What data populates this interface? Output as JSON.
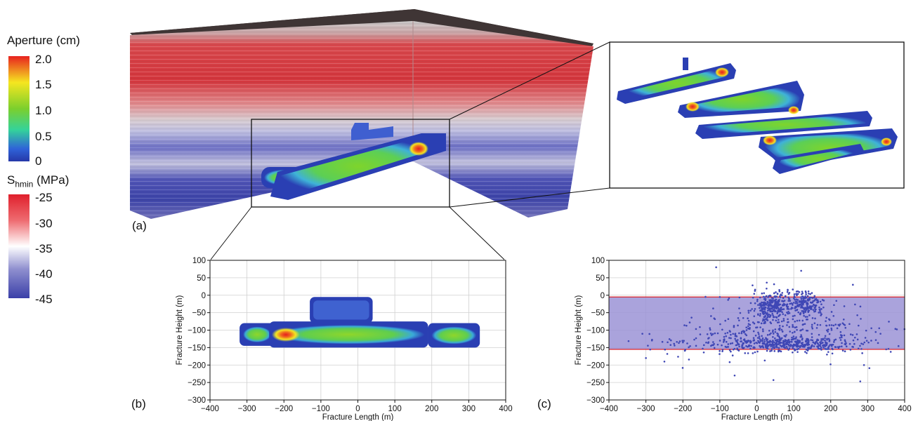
{
  "figure": {
    "colorbars": {
      "aperture": {
        "title": "Aperture (cm)",
        "ticks": [
          "2.0",
          "1.5",
          "1.0",
          "0.5",
          "0"
        ]
      },
      "stress": {
        "title_main": "S",
        "title_sub": "hmin",
        "title_unit": " (MPa)",
        "ticks": [
          "-25",
          "-30",
          "-35",
          "-40",
          "-45"
        ]
      }
    },
    "panel_labels": {
      "a": "(a)",
      "b": "(b)",
      "c": "(c)"
    },
    "colors": {
      "red_band": "#d7333b",
      "blue_band": "#3c45a6",
      "shade_fill": "#9b93d6",
      "scatter_point": "#3f47b5",
      "red_line": "#d8202a"
    }
  },
  "chart_data": [
    {
      "id": "b",
      "type": "heatmap",
      "xlabel": "Fracture Length (m)",
      "ylabel": "Fracture Height (m)",
      "xlim": [
        -400,
        400
      ],
      "ylim": [
        -300,
        100
      ],
      "xticks": [
        -400,
        -300,
        -200,
        -100,
        0,
        100,
        200,
        300,
        400
      ],
      "yticks": [
        100,
        50,
        0,
        -50,
        -100,
        -150,
        -200,
        -250,
        -300
      ],
      "grid": true,
      "regions": [
        {
          "x0": -320,
          "x1": -225,
          "y0": -145,
          "y1": -80
        },
        {
          "x0": -240,
          "x1": 190,
          "y0": -150,
          "y1": -75
        },
        {
          "x0": 190,
          "x1": 330,
          "y0": -150,
          "y1": -80
        },
        {
          "x0": -130,
          "x1": 40,
          "y0": -80,
          "y1": -5
        }
      ],
      "hotspot": {
        "x": -195,
        "y": -113,
        "value": 2.0
      }
    },
    {
      "id": "c",
      "type": "scatter",
      "xlabel": "Fracture Length (m)",
      "ylabel": "Fracture Height (m)",
      "xlim": [
        -400,
        400
      ],
      "ylim": [
        -300,
        100
      ],
      "xticks": [
        -400,
        -300,
        -200,
        -100,
        0,
        100,
        200,
        300,
        400
      ],
      "yticks": [
        100,
        50,
        0,
        -50,
        -100,
        -150,
        -200,
        -250,
        -300
      ],
      "grid": true,
      "band": {
        "y_top": -5,
        "y_bottom": -155
      },
      "clusters": [
        {
          "cx": 40,
          "cy": -30,
          "sx": 25,
          "sy": 20,
          "n": 260
        },
        {
          "cx": 130,
          "cy": -25,
          "sx": 25,
          "sy": 18,
          "n": 200
        },
        {
          "cx": 80,
          "cy": -140,
          "sx": 80,
          "sy": 10,
          "n": 380
        },
        {
          "cx": 60,
          "cy": -90,
          "sx": 100,
          "sy": 35,
          "n": 260
        },
        {
          "cx": -150,
          "cy": -135,
          "sx": 80,
          "sy": 25,
          "n": 80
        },
        {
          "cx": 260,
          "cy": -120,
          "sx": 60,
          "sy": 40,
          "n": 60
        }
      ],
      "sample_points": [
        [
          -110,
          80
        ],
        [
          -250,
          -190
        ],
        [
          -300,
          -180
        ],
        [
          -60,
          -230
        ],
        [
          45,
          -243
        ],
        [
          290,
          -200
        ],
        [
          350,
          -155
        ],
        [
          120,
          70
        ],
        [
          -100,
          -5
        ],
        [
          260,
          30
        ]
      ]
    }
  ]
}
